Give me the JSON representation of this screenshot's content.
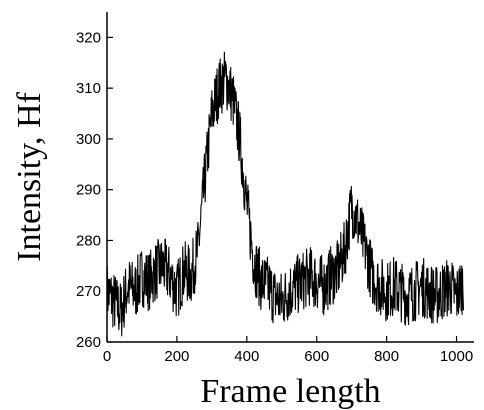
{
  "chart_data": {
    "type": "line",
    "title": "",
    "xlabel": "Frame length",
    "ylabel": "Intensity, Hf",
    "xlim": [
      0,
      1050
    ],
    "ylim": [
      260,
      325
    ],
    "x_ticks": [
      0,
      200,
      400,
      600,
      800,
      1000
    ],
    "y_ticks": [
      260,
      270,
      280,
      290,
      300,
      310,
      320
    ],
    "grid": false,
    "legend": "none",
    "line_color": "#000000",
    "series": [
      {
        "x": [
          0,
          20,
          40,
          60,
          80,
          100,
          120,
          140,
          160,
          180,
          200,
          220,
          240,
          260,
          280,
          300,
          320,
          340,
          360,
          380,
          400,
          420,
          440,
          460,
          480,
          500,
          520,
          540,
          560,
          580,
          600,
          620,
          640,
          660,
          680,
          700,
          720,
          740,
          760,
          780,
          800,
          820,
          840,
          860,
          880,
          900,
          920,
          940,
          960,
          980,
          1000,
          1020
        ],
        "values": [
          270,
          268,
          266,
          271,
          270,
          273,
          272,
          274,
          275,
          273,
          270,
          274,
          273,
          278,
          292,
          305,
          310,
          312,
          308,
          300,
          287,
          276,
          272,
          271,
          269,
          268,
          270,
          271,
          272,
          273,
          272,
          271,
          273,
          274,
          278,
          287,
          283,
          278,
          273,
          271,
          270,
          271,
          270,
          269,
          270,
          271,
          270,
          269,
          270,
          271,
          269,
          272
        ]
      }
    ]
  }
}
